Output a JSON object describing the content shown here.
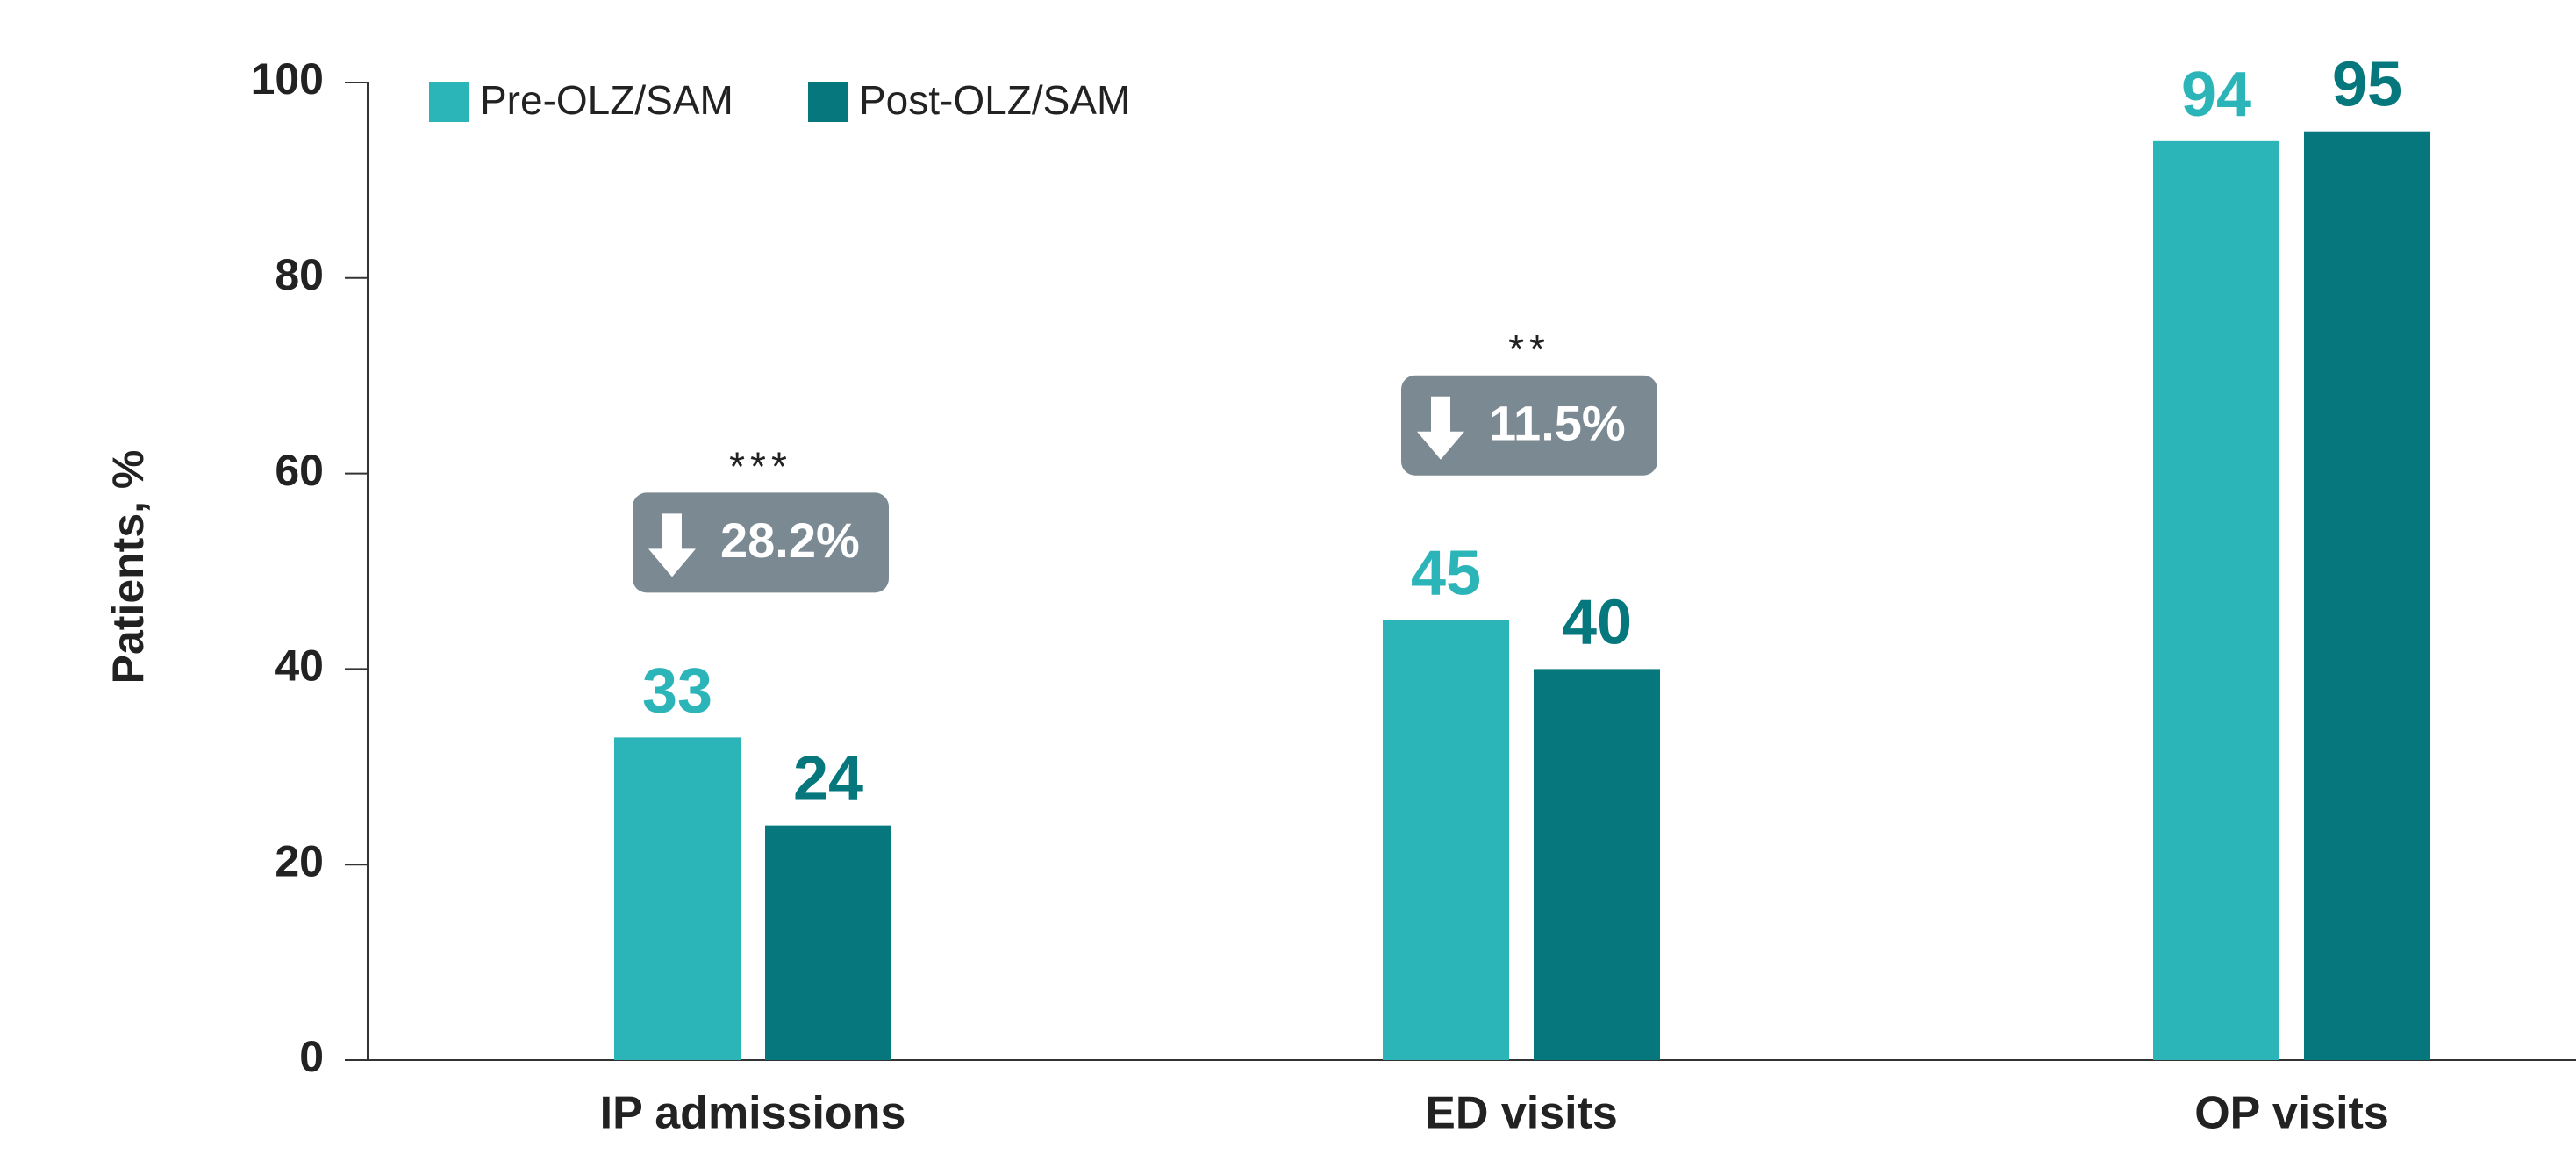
{
  "chart_data": {
    "type": "bar",
    "y_label": "Patients, %",
    "categories": [
      "IP admissions",
      "ED visits",
      "OP visits"
    ],
    "series": [
      {
        "name": "Pre-OLZ/SAM",
        "color": "#2bb5b9",
        "values": [
          33,
          45,
          94
        ]
      },
      {
        "name": "Post-OLZ/SAM",
        "color": "#05777d",
        "values": [
          24,
          40,
          95
        ]
      }
    ],
    "annotations": [
      {
        "stars": "***",
        "label": "28.2%"
      },
      {
        "stars": "**",
        "label": "11.5%"
      }
    ],
    "ylim": [
      0,
      100
    ],
    "yticks": [
      0,
      20,
      40,
      60,
      80,
      100
    ],
    "grid": false,
    "legend": "top-left"
  }
}
